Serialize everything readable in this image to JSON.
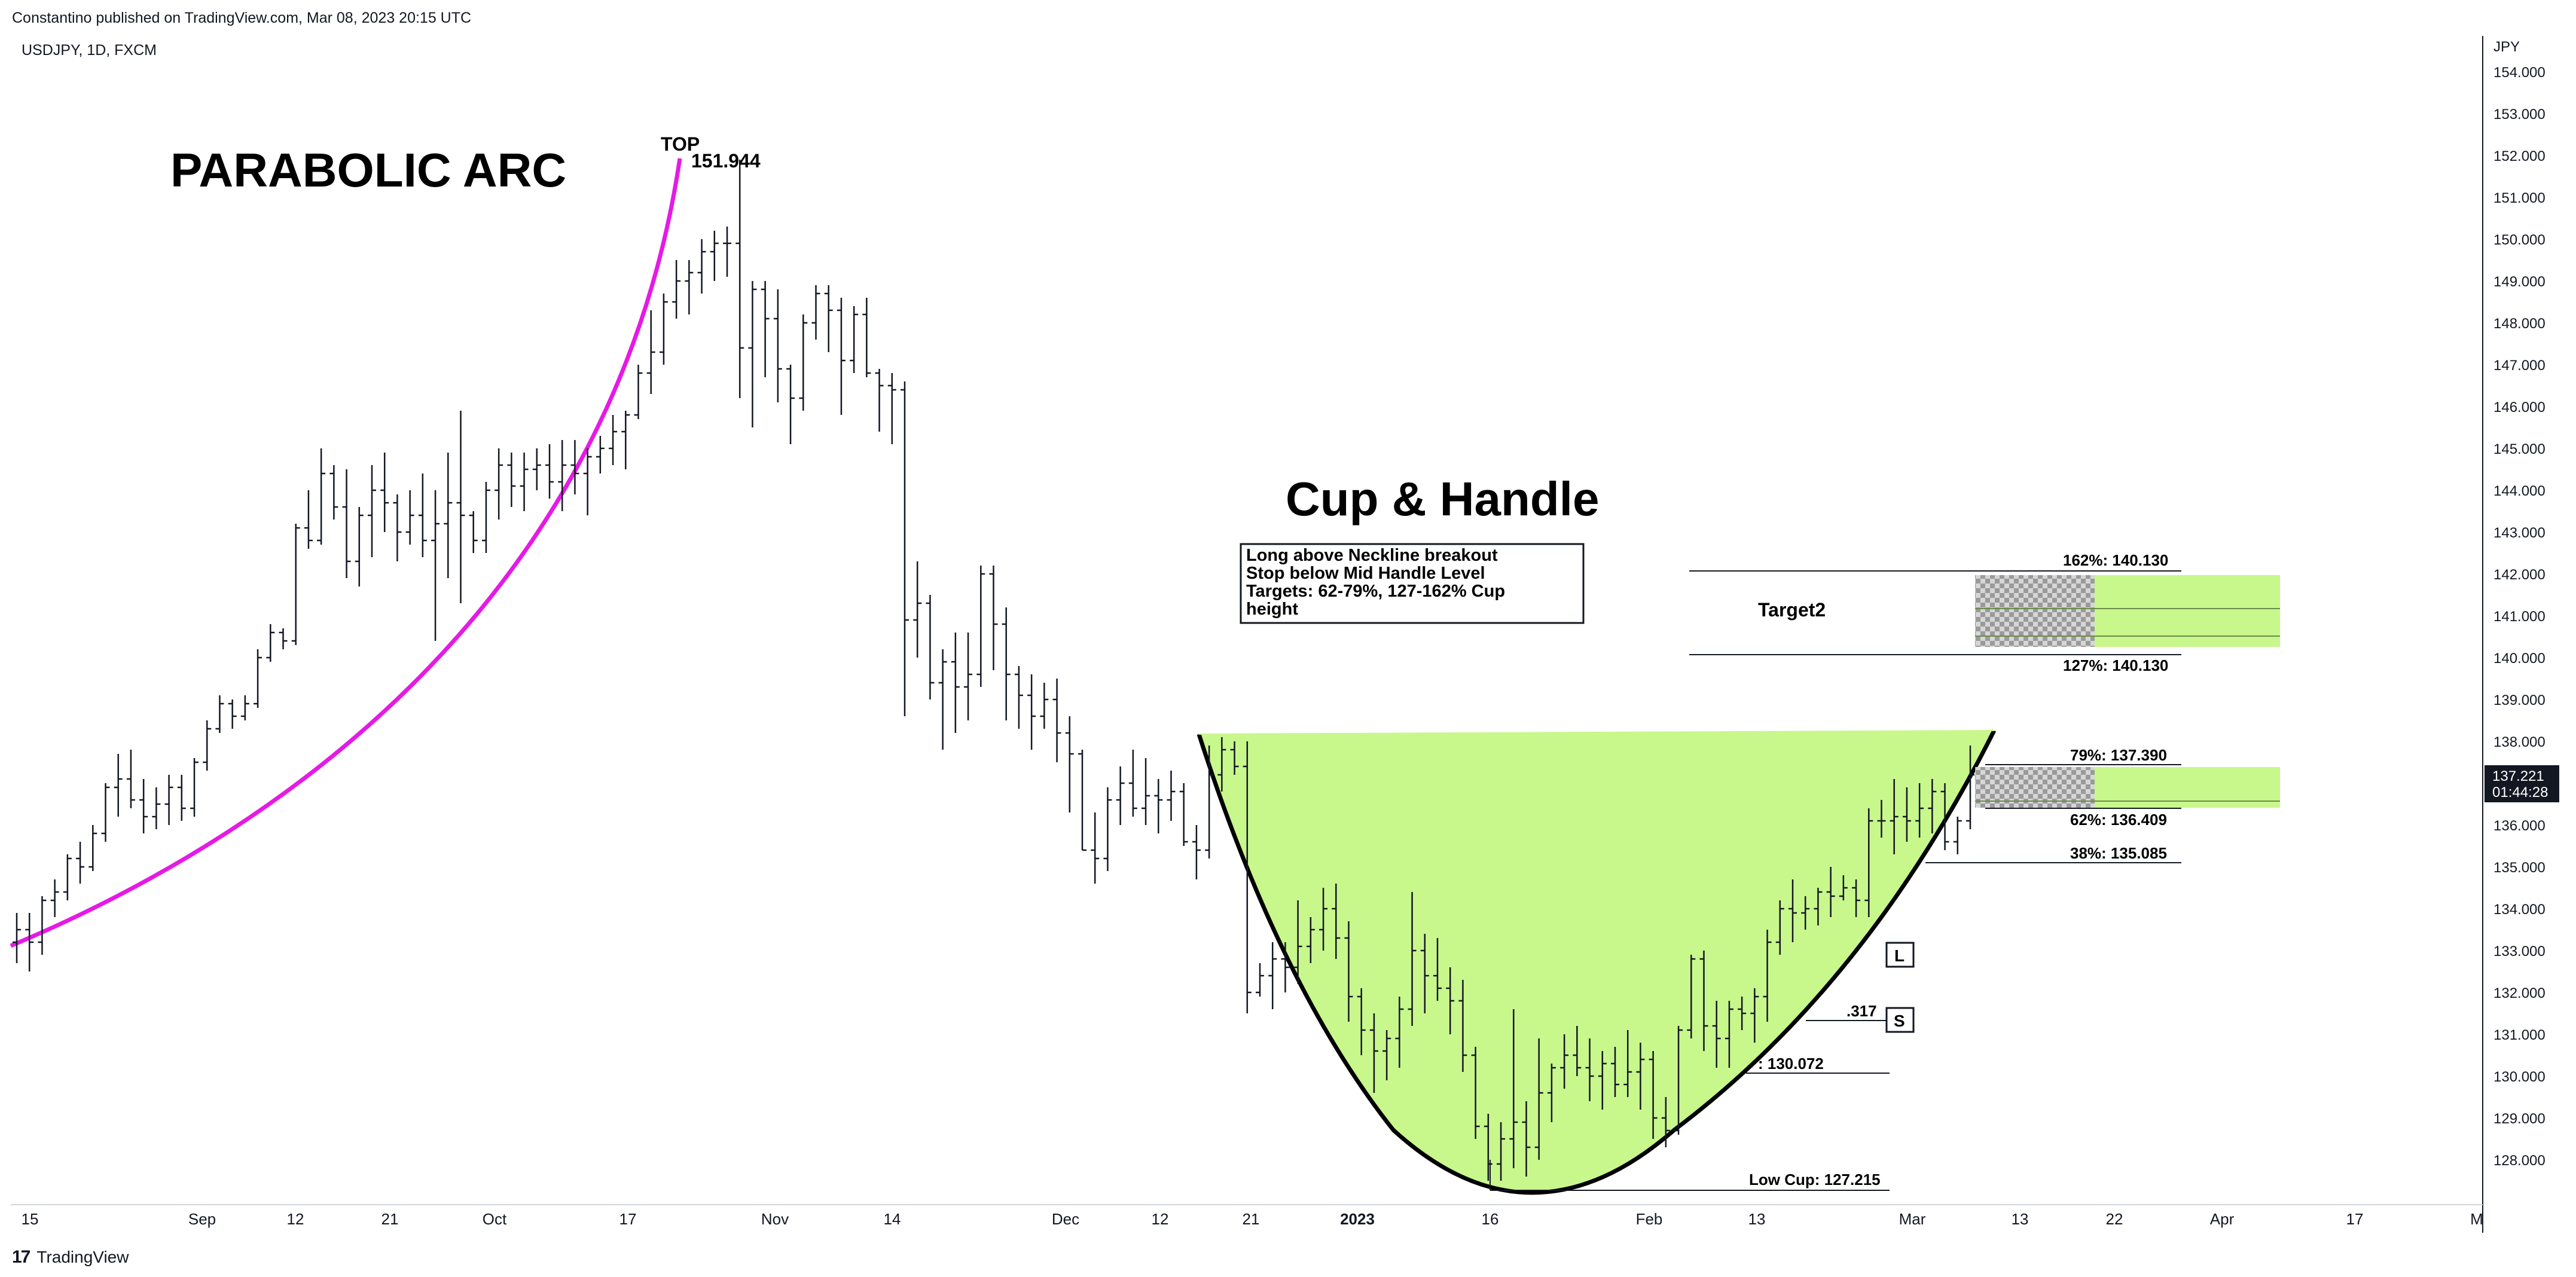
{
  "header": {
    "published": "Constantino published on TradingView.com, Mar 08, 2023 20:15 UTC",
    "symbol": "USDJPY, 1D, FXCM",
    "currency": "JPY"
  },
  "footer": {
    "logo_text": "TradingView"
  },
  "price_axis": {
    "ticks": [
      "154.000",
      "153.000",
      "152.000",
      "151.000",
      "150.000",
      "149.000",
      "148.000",
      "147.000",
      "146.000",
      "145.000",
      "144.000",
      "143.000",
      "142.000",
      "141.000",
      "140.000",
      "139.000",
      "138.000",
      "137.000",
      "136.000",
      "135.000",
      "134.000",
      "133.000",
      "132.000",
      "131.000",
      "130.000",
      "129.000",
      "128.000"
    ],
    "last_price": "137.221",
    "countdown": "01:44:28"
  },
  "time_axis": {
    "ticks": [
      "15",
      "Sep",
      "12",
      "21",
      "Oct",
      "17",
      "Nov",
      "14",
      "Dec",
      "12",
      "21",
      "2023",
      "16",
      "Feb",
      "13",
      "Mar",
      "13",
      "22",
      "Apr",
      "17",
      "M"
    ]
  },
  "annotations": {
    "parabolic": "PARABOLIC ARC",
    "top": "TOP",
    "top_price": "151.944",
    "cup_handle": "Cup & Handle",
    "note_lines": [
      "Long above Neckline breakout",
      "Stop below Mid Handle Level",
      "Targets: 62-79%, 127-162% Cup",
      "height"
    ],
    "target2": "Target2",
    "fib_162": "162%: 140.130",
    "fib_127": "127%: 140.130",
    "fib_79": "79%: 137.390",
    "fib_62": "62%: 136.409",
    "fib_38": "38%: 135.085",
    "mid_handle": ".317",
    "fib_low_partial": ": 130.072",
    "low_cup": "Low Cup: 127.215",
    "marker_long": "L",
    "marker_short": "S"
  },
  "colors": {
    "arc": "#e619e6",
    "cup_fill": "#c8f78c",
    "candle": "#131722",
    "price_tag_bg": "#131722"
  },
  "chart_data": {
    "type": "ohlc",
    "symbol": "USDJPY",
    "interval": "1D",
    "ylim": [
      127.0,
      154.4
    ],
    "grid": false,
    "bars": [
      [
        133.2,
        133.9,
        132.7,
        133.5
      ],
      [
        133.5,
        133.9,
        132.5,
        133.2
      ],
      [
        133.2,
        134.3,
        132.9,
        134.2
      ],
      [
        134.2,
        134.7,
        133.8,
        134.4
      ],
      [
        134.4,
        135.3,
        134.2,
        135.2
      ],
      [
        135.2,
        135.6,
        134.6,
        135.0
      ],
      [
        135.0,
        136.0,
        134.9,
        135.8
      ],
      [
        135.8,
        137.0,
        135.6,
        136.9
      ],
      [
        136.9,
        137.7,
        136.2,
        137.1
      ],
      [
        137.1,
        137.8,
        136.4,
        136.6
      ],
      [
        136.6,
        137.1,
        135.8,
        136.2
      ],
      [
        136.2,
        136.9,
        135.9,
        136.5
      ],
      [
        136.5,
        137.2,
        136.0,
        136.9
      ],
      [
        136.9,
        137.2,
        136.1,
        136.4
      ],
      [
        136.4,
        137.6,
        136.2,
        137.5
      ],
      [
        137.5,
        138.5,
        137.3,
        138.3
      ],
      [
        138.3,
        139.1,
        138.2,
        138.9
      ],
      [
        138.9,
        139.0,
        138.3,
        138.6
      ],
      [
        138.6,
        139.1,
        138.5,
        138.9
      ],
      [
        138.9,
        140.2,
        138.8,
        140.0
      ],
      [
        140.0,
        140.8,
        139.9,
        140.6
      ],
      [
        140.6,
        140.7,
        140.2,
        140.4
      ],
      [
        140.4,
        143.2,
        140.3,
        143.1
      ],
      [
        143.1,
        144.0,
        142.6,
        142.8
      ],
      [
        142.8,
        145.0,
        142.7,
        144.4
      ],
      [
        144.4,
        144.6,
        143.3,
        143.6
      ],
      [
        143.6,
        144.5,
        141.9,
        142.3
      ],
      [
        142.3,
        143.6,
        141.7,
        143.4
      ],
      [
        143.4,
        144.6,
        142.4,
        144.0
      ],
      [
        144.0,
        144.9,
        143.0,
        143.7
      ],
      [
        143.7,
        143.9,
        142.3,
        143.0
      ],
      [
        143.0,
        144.0,
        142.7,
        143.4
      ],
      [
        143.4,
        144.4,
        142.4,
        142.8
      ],
      [
        142.8,
        144.0,
        140.4,
        143.2
      ],
      [
        143.2,
        144.9,
        141.9,
        143.7
      ],
      [
        143.7,
        145.9,
        141.3,
        143.4
      ],
      [
        143.4,
        143.5,
        142.5,
        142.8
      ],
      [
        142.8,
        144.2,
        142.5,
        144.0
      ],
      [
        144.0,
        145.0,
        143.3,
        144.6
      ],
      [
        144.6,
        144.9,
        143.6,
        144.1
      ],
      [
        144.1,
        144.9,
        143.5,
        144.5
      ],
      [
        144.5,
        145.0,
        144.0,
        144.6
      ],
      [
        144.6,
        145.1,
        143.8,
        144.2
      ],
      [
        144.2,
        145.2,
        143.5,
        144.6
      ],
      [
        144.6,
        145.2,
        143.9,
        144.4
      ],
      [
        144.4,
        145.0,
        143.4,
        144.8
      ],
      [
        144.8,
        145.3,
        144.4,
        145.0
      ],
      [
        145.0,
        145.8,
        144.6,
        145.4
      ],
      [
        145.4,
        145.9,
        144.5,
        145.8
      ],
      [
        145.8,
        147.0,
        145.7,
        146.8
      ],
      [
        146.8,
        148.3,
        146.3,
        147.3
      ],
      [
        147.3,
        148.7,
        147.0,
        148.5
      ],
      [
        148.5,
        149.5,
        148.1,
        149.0
      ],
      [
        149.0,
        149.5,
        148.2,
        149.2
      ],
      [
        149.2,
        150.0,
        148.7,
        149.7
      ],
      [
        149.7,
        150.2,
        149.0,
        149.9
      ],
      [
        149.9,
        150.3,
        149.1,
        149.9
      ],
      [
        149.9,
        151.9,
        146.2,
        147.4
      ],
      [
        147.4,
        149.0,
        145.5,
        148.8
      ],
      [
        148.8,
        149.0,
        146.7,
        148.1
      ],
      [
        148.1,
        148.8,
        146.1,
        146.9
      ],
      [
        146.9,
        147.0,
        145.1,
        146.2
      ],
      [
        146.2,
        148.2,
        145.9,
        148.0
      ],
      [
        148.0,
        148.9,
        147.6,
        148.7
      ],
      [
        148.7,
        148.9,
        147.3,
        148.3
      ],
      [
        148.3,
        148.6,
        145.8,
        147.1
      ],
      [
        147.1,
        148.4,
        146.8,
        148.2
      ],
      [
        148.2,
        148.6,
        146.7,
        146.8
      ],
      [
        146.8,
        146.9,
        145.4,
        146.5
      ],
      [
        146.5,
        146.8,
        145.1,
        146.4
      ],
      [
        146.4,
        146.6,
        138.6,
        140.9
      ],
      [
        140.9,
        142.3,
        140.0,
        141.3
      ],
      [
        141.3,
        141.5,
        139.0,
        139.4
      ],
      [
        139.4,
        140.2,
        137.8,
        139.9
      ],
      [
        139.9,
        140.6,
        138.2,
        139.3
      ],
      [
        139.3,
        140.6,
        138.5,
        139.6
      ],
      [
        139.6,
        142.2,
        139.3,
        142.0
      ],
      [
        142.0,
        142.2,
        139.7,
        140.8
      ],
      [
        140.8,
        141.2,
        138.5,
        139.6
      ],
      [
        139.6,
        139.8,
        138.3,
        139.1
      ],
      [
        139.1,
        139.6,
        137.8,
        138.6
      ],
      [
        138.6,
        139.4,
        138.3,
        139.0
      ],
      [
        139.0,
        139.5,
        137.5,
        138.2
      ],
      [
        138.2,
        138.6,
        136.3,
        137.7
      ],
      [
        137.7,
        137.8,
        135.4,
        135.4
      ],
      [
        135.4,
        136.3,
        134.6,
        135.2
      ],
      [
        135.2,
        136.9,
        134.9,
        136.6
      ],
      [
        136.6,
        137.4,
        136.0,
        137.0
      ],
      [
        137.0,
        137.8,
        136.2,
        136.4
      ],
      [
        136.4,
        137.6,
        136.0,
        136.7
      ],
      [
        136.7,
        137.1,
        135.8,
        136.6
      ],
      [
        136.6,
        137.3,
        136.1,
        136.8
      ],
      [
        136.8,
        137.0,
        135.5,
        135.6
      ],
      [
        135.6,
        136.0,
        134.7,
        135.4
      ],
      [
        135.4,
        137.9,
        135.2,
        137.2
      ],
      [
        137.2,
        138.1,
        136.8,
        137.8
      ],
      [
        137.8,
        138.0,
        137.2,
        137.4
      ],
      [
        137.4,
        138.0,
        131.5,
        132.0
      ],
      [
        132.0,
        132.7,
        131.9,
        132.4
      ],
      [
        132.4,
        133.2,
        131.6,
        132.8
      ],
      [
        132.8,
        133.2,
        132.0,
        132.6
      ],
      [
        132.6,
        134.2,
        132.2,
        133.1
      ],
      [
        133.1,
        133.8,
        132.7,
        133.5
      ],
      [
        133.5,
        134.5,
        133.0,
        134.0
      ],
      [
        134.0,
        134.6,
        132.8,
        133.3
      ],
      [
        133.3,
        133.7,
        131.3,
        131.9
      ],
      [
        131.9,
        132.1,
        130.5,
        131.1
      ],
      [
        131.1,
        131.5,
        129.6,
        130.6
      ],
      [
        130.6,
        131.1,
        129.9,
        130.9
      ],
      [
        130.9,
        131.9,
        130.2,
        131.6
      ],
      [
        131.6,
        134.4,
        131.2,
        133.0
      ],
      [
        133.0,
        133.4,
        131.5,
        132.4
      ],
      [
        132.4,
        133.3,
        131.8,
        132.1
      ],
      [
        132.1,
        132.6,
        131.0,
        131.8
      ],
      [
        131.8,
        132.3,
        130.1,
        130.5
      ],
      [
        130.5,
        130.7,
        128.5,
        128.8
      ],
      [
        128.8,
        129.1,
        127.5,
        127.9
      ],
      [
        127.9,
        128.9,
        127.5,
        128.5
      ],
      [
        128.5,
        131.6,
        127.8,
        128.9
      ],
      [
        128.9,
        129.4,
        127.6,
        128.3
      ],
      [
        128.3,
        130.9,
        128.0,
        129.6
      ],
      [
        129.6,
        130.3,
        128.9,
        130.2
      ],
      [
        130.2,
        131.0,
        129.7,
        130.5
      ],
      [
        130.5,
        131.2,
        130.0,
        130.2
      ],
      [
        130.2,
        130.9,
        129.4,
        130.0
      ],
      [
        130.0,
        130.6,
        129.2,
        130.3
      ],
      [
        130.3,
        130.7,
        129.5,
        129.8
      ],
      [
        129.8,
        131.1,
        129.5,
        130.1
      ],
      [
        130.1,
        130.8,
        129.2,
        130.4
      ],
      [
        130.4,
        130.6,
        128.5,
        129.0
      ],
      [
        129.0,
        129.5,
        128.3,
        128.7
      ],
      [
        128.7,
        131.2,
        128.6,
        131.1
      ],
      [
        131.1,
        132.9,
        130.9,
        132.8
      ],
      [
        132.8,
        133.0,
        130.6,
        131.2
      ],
      [
        131.2,
        131.8,
        130.2,
        130.9
      ],
      [
        130.9,
        131.8,
        130.2,
        131.6
      ],
      [
        131.6,
        131.9,
        131.1,
        131.5
      ],
      [
        131.5,
        132.1,
        130.8,
        131.9
      ],
      [
        131.9,
        133.5,
        131.3,
        133.2
      ],
      [
        133.2,
        134.2,
        132.9,
        134.0
      ],
      [
        134.0,
        134.7,
        133.2,
        133.9
      ],
      [
        133.9,
        134.3,
        133.5,
        134.0
      ],
      [
        134.0,
        134.5,
        133.6,
        134.4
      ],
      [
        134.4,
        135.0,
        133.8,
        134.3
      ],
      [
        134.3,
        134.8,
        134.2,
        134.5
      ],
      [
        134.5,
        134.7,
        133.8,
        134.2
      ],
      [
        134.2,
        136.4,
        133.8,
        136.1
      ],
      [
        136.1,
        136.6,
        135.7,
        136.1
      ],
      [
        136.1,
        137.1,
        135.3,
        136.2
      ],
      [
        136.2,
        136.9,
        135.6,
        136.1
      ],
      [
        136.1,
        137.0,
        135.7,
        136.4
      ],
      [
        136.4,
        137.1,
        135.8,
        136.8
      ],
      [
        136.8,
        137.0,
        135.4,
        135.6
      ],
      [
        135.6,
        136.2,
        135.3,
        136.1
      ],
      [
        136.1,
        137.9,
        135.9,
        137.2
      ]
    ]
  }
}
